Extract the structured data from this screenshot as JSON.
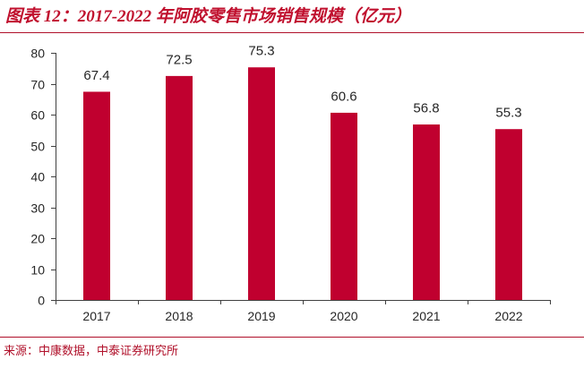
{
  "colors": {
    "accent": "#C0102E",
    "rule": "#B0102A",
    "bar": "#C0002F",
    "axis": "#404040",
    "text": "#262626"
  },
  "source": "来源：中康数据，中泰证券研究所",
  "chart_data": {
    "type": "bar",
    "title": "图表 12：2017-2022 年阿胶零售市场销售规模（亿元）",
    "categories": [
      "2017",
      "2018",
      "2019",
      "2020",
      "2021",
      "2022"
    ],
    "values": [
      67.4,
      72.5,
      75.3,
      60.6,
      56.8,
      55.3
    ],
    "ylim": [
      0,
      80
    ],
    "yticks": [
      0,
      10,
      20,
      30,
      40,
      50,
      60,
      70,
      80
    ],
    "grid": false
  }
}
